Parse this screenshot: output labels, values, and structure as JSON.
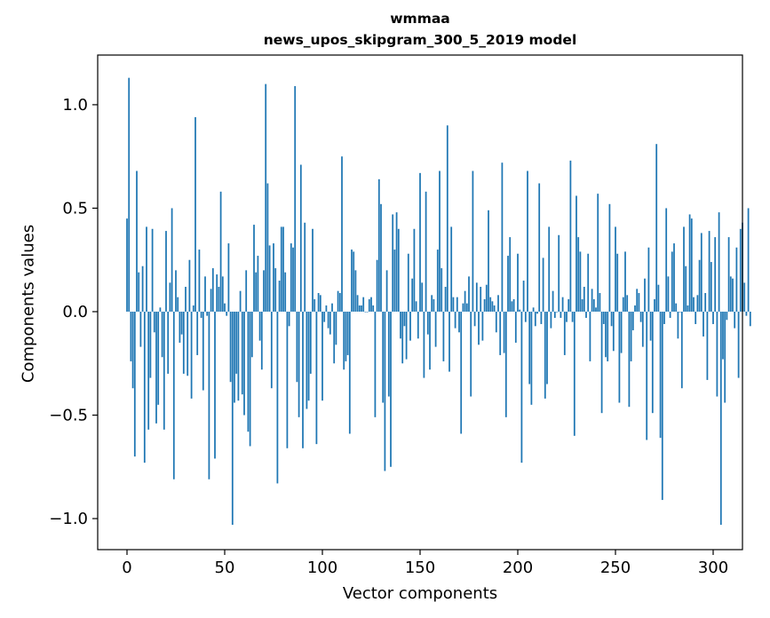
{
  "chart_data": {
    "type": "bar",
    "title_line1": "wmmaa",
    "title_line2": "news_upos_skipgram_300_5_2019 model",
    "xlabel": "Vector components",
    "ylabel": "Components values",
    "xlim": [
      -15,
      315
    ],
    "ylim": [
      -1.15,
      1.24
    ],
    "xticks": [
      0,
      50,
      100,
      150,
      200,
      250,
      300
    ],
    "xtick_labels": [
      "0",
      "50",
      "100",
      "150",
      "200",
      "250",
      "300"
    ],
    "yticks": [
      -1.0,
      -0.5,
      0.0,
      0.5,
      1.0
    ],
    "ytick_labels": [
      "−1.0",
      "−0.5",
      "0.0",
      "0.5",
      "1.0"
    ],
    "bar_color": "#1f77b4",
    "values": [
      0.45,
      1.13,
      -0.24,
      -0.37,
      -0.7,
      0.68,
      0.19,
      -0.17,
      0.22,
      -0.73,
      0.41,
      -0.57,
      -0.32,
      0.4,
      -0.1,
      -0.54,
      -0.45,
      0.02,
      -0.22,
      -0.57,
      0.39,
      -0.3,
      0.14,
      0.5,
      -0.81,
      0.2,
      0.07,
      -0.15,
      -0.11,
      -0.3,
      0.12,
      -0.31,
      0.25,
      -0.42,
      0.03,
      0.94,
      -0.21,
      0.3,
      -0.03,
      -0.38,
      0.17,
      -0.02,
      -0.81,
      0.11,
      0.21,
      -0.71,
      0.18,
      0.12,
      0.58,
      0.17,
      0.04,
      -0.02,
      0.33,
      -0.34,
      -1.03,
      -0.44,
      -0.3,
      -0.43,
      0.1,
      -0.4,
      -0.5,
      0.2,
      -0.58,
      -0.65,
      -0.22,
      0.42,
      0.19,
      0.27,
      -0.14,
      -0.28,
      0.2,
      1.1,
      0.62,
      0.32,
      -0.37,
      0.33,
      0.21,
      -0.83,
      0.15,
      0.41,
      0.41,
      0.19,
      -0.66,
      -0.07,
      0.33,
      0.31,
      1.09,
      -0.34,
      -0.51,
      0.71,
      -0.66,
      0.43,
      -0.47,
      -0.43,
      -0.3,
      0.4,
      0.06,
      -0.64,
      0.09,
      0.08,
      -0.43,
      -0.05,
      0.03,
      -0.08,
      -0.11,
      0.04,
      -0.25,
      -0.16,
      0.1,
      0.09,
      0.75,
      -0.28,
      -0.24,
      -0.21,
      -0.59,
      0.3,
      0.29,
      0.2,
      0.08,
      0.03,
      0.03,
      0.07,
      0.0,
      0.0,
      0.06,
      0.07,
      0.03,
      -0.51,
      0.25,
      0.64,
      0.52,
      -0.44,
      -0.77,
      0.2,
      -0.41,
      -0.75,
      0.47,
      0.3,
      0.48,
      0.4,
      -0.13,
      -0.25,
      -0.07,
      -0.23,
      0.28,
      -0.14,
      0.16,
      0.4,
      0.05,
      -0.13,
      0.67,
      0.14,
      -0.32,
      0.58,
      -0.11,
      -0.28,
      0.08,
      0.06,
      -0.17,
      0.3,
      0.68,
      0.21,
      -0.24,
      0.12,
      0.9,
      -0.29,
      0.41,
      0.07,
      -0.08,
      0.07,
      -0.1,
      -0.59,
      0.04,
      0.1,
      0.04,
      0.17,
      -0.41,
      0.68,
      -0.07,
      0.14,
      -0.16,
      0.12,
      -0.14,
      0.06,
      0.13,
      0.49,
      0.07,
      0.05,
      0.03,
      -0.1,
      0.08,
      -0.21,
      0.72,
      -0.2,
      -0.51,
      0.27,
      0.36,
      0.05,
      0.06,
      -0.15,
      0.28,
      0.01,
      -0.73,
      0.15,
      -0.05,
      0.68,
      -0.35,
      -0.45,
      0.02,
      -0.07,
      -0.01,
      0.62,
      -0.06,
      0.26,
      -0.42,
      -0.35,
      0.41,
      -0.08,
      0.1,
      -0.03,
      0.0,
      0.37,
      -0.03,
      0.07,
      -0.21,
      -0.05,
      0.06,
      0.73,
      -0.05,
      -0.6,
      0.56,
      0.36,
      0.29,
      0.06,
      0.12,
      -0.03,
      0.28,
      -0.24,
      0.11,
      0.06,
      0.02,
      0.57,
      0.09,
      -0.49,
      -0.06,
      -0.22,
      -0.24,
      0.52,
      -0.07,
      -0.19,
      0.41,
      0.28,
      -0.44,
      -0.2,
      0.07,
      0.29,
      0.08,
      -0.46,
      -0.24,
      -0.09,
      0.03,
      0.11,
      0.09,
      -0.05,
      -0.17,
      0.16,
      -0.62,
      0.31,
      -0.14,
      -0.49,
      0.06,
      0.81,
      0.13,
      -0.61,
      -0.91,
      -0.06,
      0.5,
      0.17,
      -0.03,
      0.29,
      0.33,
      0.04,
      -0.13,
      0.0,
      -0.37,
      0.41,
      0.22,
      0.03,
      0.47,
      0.45,
      0.07,
      -0.06,
      0.08,
      0.25,
      0.38,
      -0.12,
      0.09,
      -0.33,
      0.39,
      0.24,
      -0.06,
      0.36,
      -0.41,
      0.48,
      -1.03,
      -0.23,
      -0.44,
      -0.04,
      0.36,
      0.17,
      0.16,
      -0.08,
      0.31,
      -0.32,
      0.4,
      0.43,
      0.14,
      -0.02,
      0.5,
      -0.07
    ]
  }
}
